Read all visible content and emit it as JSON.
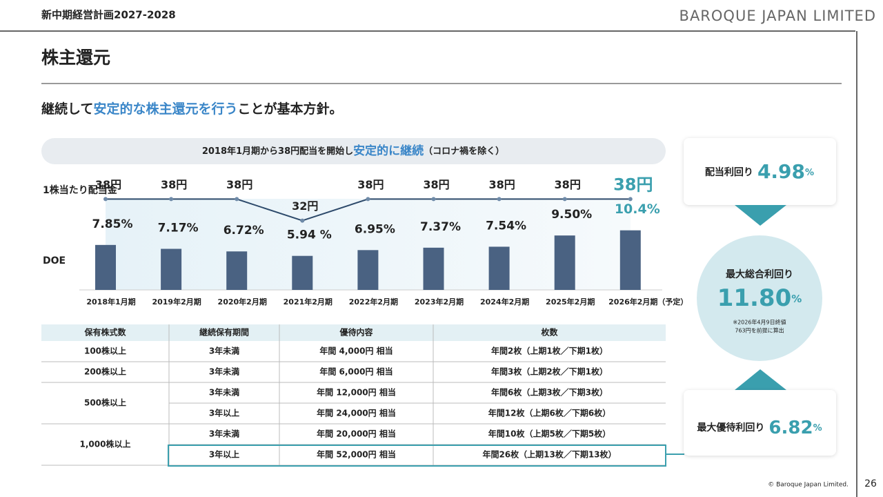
{
  "header": {
    "plan": "新中期経営計画2027-2028",
    "brand": "BAROQUE JAPAN LIMITED",
    "title": "株主還元"
  },
  "lead": {
    "pre": "継続して",
    "em": "安定的な株主還元を行う",
    "post": "ことが基本方針。"
  },
  "banner": {
    "pre": "2018年1月期から38円配当を開始し",
    "em": "安定的に継続",
    "post": "（コロナ禍を除く）"
  },
  "chart_data": {
    "type": "bar-line",
    "categories": [
      "2018年1月期",
      "2019年2月期",
      "2020年2月期",
      "2021年2月期",
      "2022年2月期",
      "2023年2月期",
      "2024年2月期",
      "2025年2月期",
      "2026年2月期（予定）"
    ],
    "series": [
      {
        "name": "1株当たり配当金",
        "type": "line",
        "color": "#2d4a6b",
        "values": [
          38,
          38,
          38,
          32,
          38,
          38,
          38,
          38,
          38
        ],
        "value_labels": [
          "38円",
          "38円",
          "38円",
          "32円",
          "38円",
          "38円",
          "38円",
          "38円",
          "38円"
        ]
      },
      {
        "name": "DOE",
        "type": "bar",
        "color": "#4a6282",
        "values": [
          7.85,
          7.17,
          6.72,
          5.94,
          6.95,
          7.37,
          7.54,
          9.5,
          10.4
        ],
        "value_labels": [
          "7.85%",
          "7.17%",
          "6.72%",
          "5.94 %",
          "6.95%",
          "7.37%",
          "7.54%",
          "9.50%",
          "10.4%"
        ]
      }
    ]
  },
  "table": {
    "header": [
      "保有株式数",
      "継続保有期間",
      "優待内容",
      "枚数"
    ],
    "groups": [
      {
        "shares": "100株以上",
        "rows": [
          [
            "3年未満",
            "年間 4,000円 相当",
            "年間2枚（上期1枚／下期1枚）"
          ]
        ]
      },
      {
        "shares": "200株以上",
        "rows": [
          [
            "3年未満",
            "年間 6,000円 相当",
            "年間3枚（上期2枚／下期1枚）"
          ]
        ]
      },
      {
        "shares": "500株以上",
        "rows": [
          [
            "3年未満",
            "年間 12,000円 相当",
            "年間6枚（上期3枚／下期3枚）"
          ],
          [
            "3年以上",
            "年間 24,000円 相当",
            "年間12枚（上期6枚／下期6枚）"
          ]
        ]
      },
      {
        "shares": "1,000株以上",
        "rows": [
          [
            "3年未満",
            "年間 20,000円 相当",
            "年間10枚（上期5枚／下期5枚）"
          ],
          [
            "3年以上",
            "年間 52,000円 相当",
            "年間26枚（上期13枚／下期13枚）"
          ]
        ]
      }
    ]
  },
  "yields": {
    "dividend": {
      "label": "配当利回り",
      "value": "4.98",
      "unit": "%"
    },
    "total": {
      "label": "最大総合利回り",
      "value": "11.80",
      "unit": "%",
      "note": [
        "※2026年4月9日終値",
        "763円を前提に算出"
      ]
    },
    "benefit": {
      "label": "最大優待利回り",
      "value": "6.82",
      "unit": "%"
    }
  },
  "footer": {
    "copyright": "© Baroque Japan Limited.",
    "page": "26"
  }
}
